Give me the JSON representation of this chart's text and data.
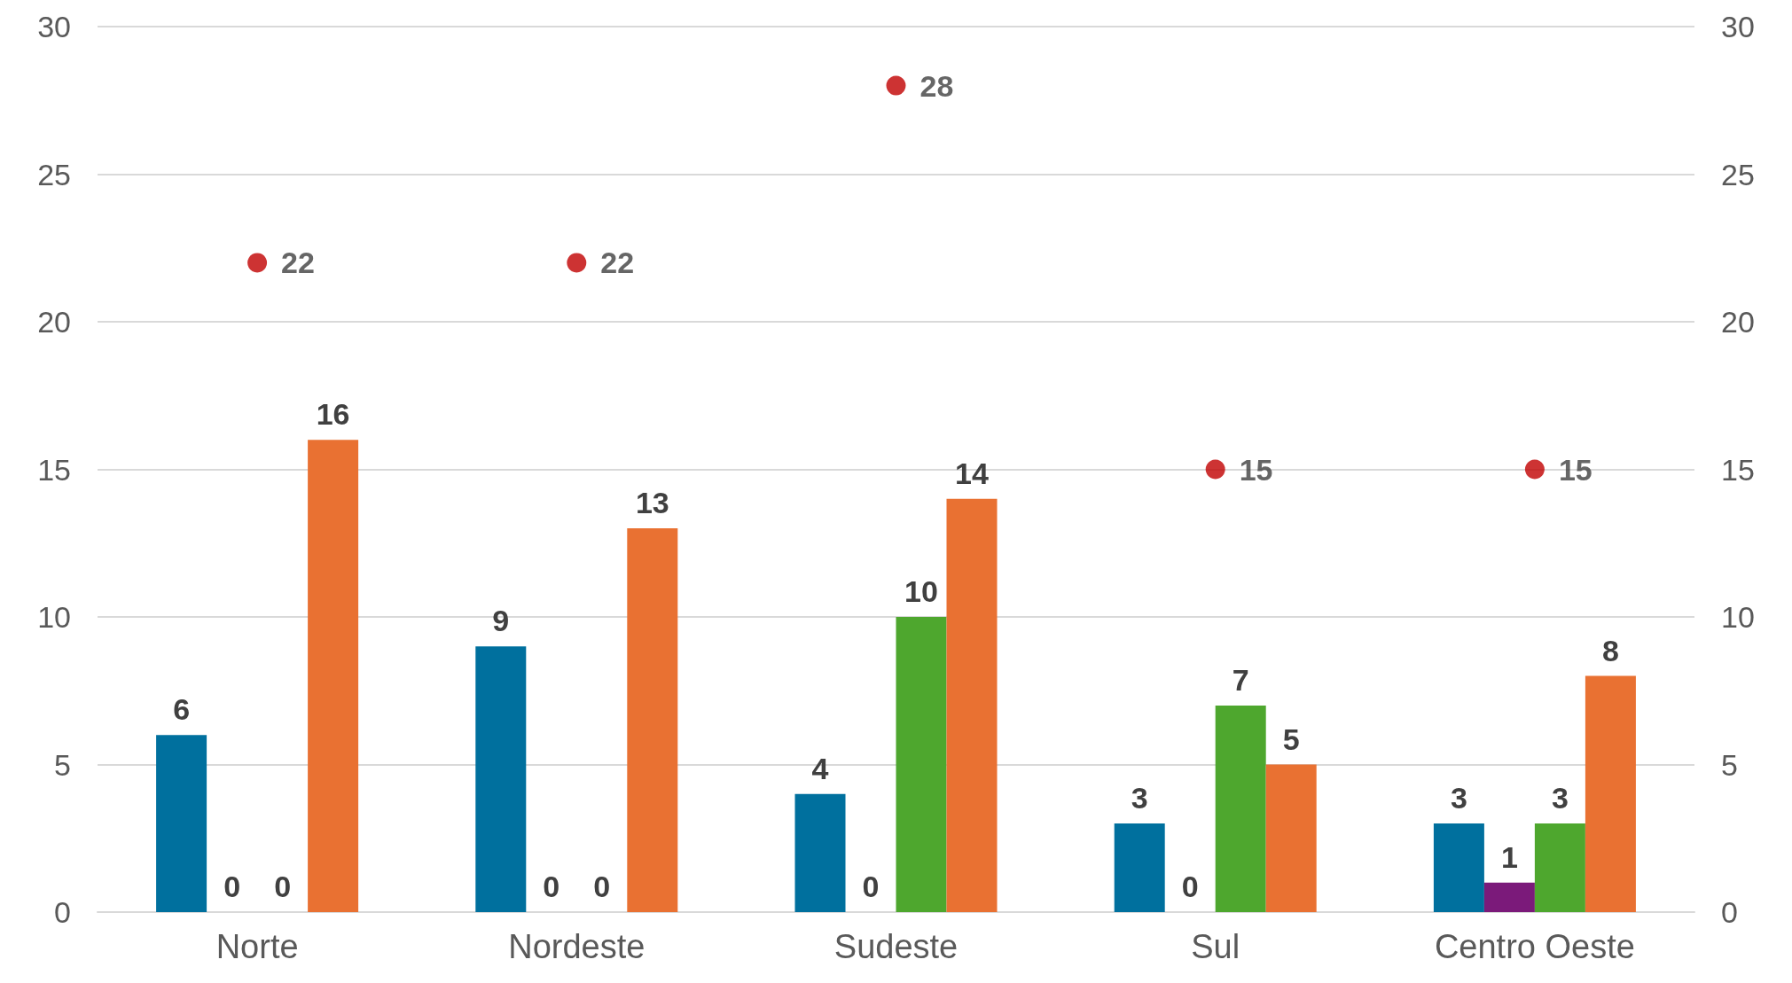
{
  "chart_data": {
    "type": "bar",
    "categories": [
      "Norte",
      "Nordeste",
      "Sudeste",
      "Sul",
      "Centro Oeste"
    ],
    "series": [
      {
        "color": "#00709e",
        "values": [
          6,
          9,
          4,
          3,
          3
        ]
      },
      {
        "color": "#7b1a7a",
        "values": [
          0,
          0,
          0,
          0,
          1
        ]
      },
      {
        "color": "#4ea72e",
        "values": [
          0,
          0,
          10,
          7,
          3
        ]
      },
      {
        "color": "#e97132",
        "values": [
          16,
          13,
          14,
          5,
          8
        ]
      },
      {
        "type": "scatter",
        "marker": "circle",
        "color": "#c00000",
        "x": [
          "Norte",
          "Nordeste",
          "Sudeste",
          "Sul",
          "Centro Oeste"
        ],
        "values": [
          22,
          22,
          28,
          15,
          15
        ]
      }
    ],
    "ylim": [
      0,
      30
    ],
    "yticks": [
      0,
      5,
      10,
      15,
      20,
      25,
      30
    ],
    "y2lim": [
      0,
      30
    ],
    "y2ticks": [
      0,
      5,
      10,
      15,
      20,
      25,
      30
    ],
    "grid": "y",
    "data_labels": true
  }
}
